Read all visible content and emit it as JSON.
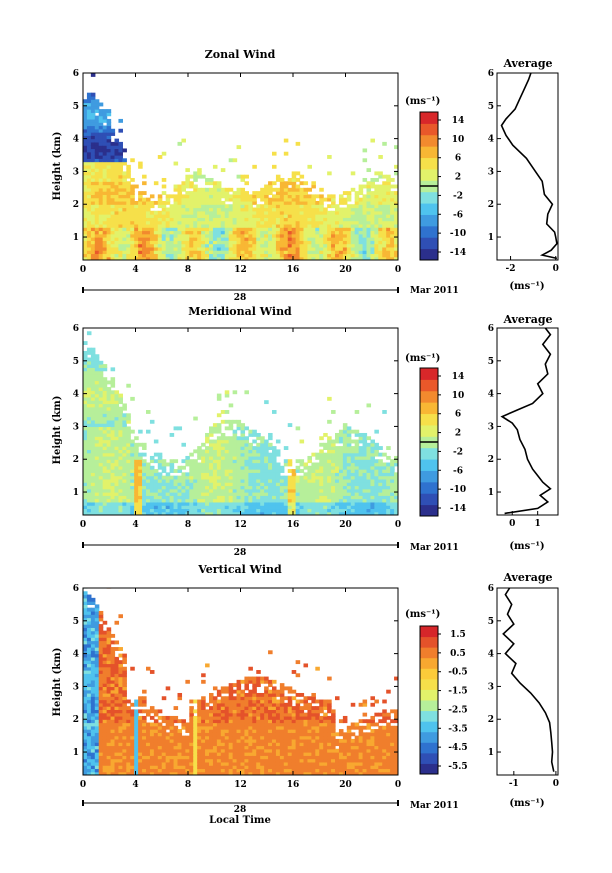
{
  "colors": {
    "zonal": [
      "#2b2f8c",
      "#2f4fb5",
      "#2f72cf",
      "#3f9be0",
      "#4fc3ee",
      "#7fe0e0",
      "#b6ef9a",
      "#e2f26a",
      "#f6e04a",
      "#f8b734",
      "#f28a2e",
      "#e9582a",
      "#d8272a"
    ],
    "vertical": [
      "#2b2f8c",
      "#2f4fb5",
      "#2f72cf",
      "#3f9be0",
      "#4fc3ee",
      "#7fe0e0",
      "#b6ef9a",
      "#e2f26a",
      "#f6e04a",
      "#fbcb3a",
      "#f8a830",
      "#f07e2c",
      "#e4522a",
      "#d6262a"
    ]
  },
  "chart_data": [
    {
      "type": "heatmap",
      "title": "Zonal Wind",
      "ylabel": "Height (km)",
      "xlabel": "",
      "x_ticks": [
        "0",
        "4",
        "8",
        "12",
        "16",
        "20",
        "0"
      ],
      "y_ticks": [
        "1",
        "2",
        "3",
        "4",
        "5",
        "6"
      ],
      "xlim": [
        0,
        24
      ],
      "ylim": [
        0.3,
        6
      ],
      "date_label": "28",
      "month_label": "Mar 2011",
      "colorbar": {
        "unit": "(ms⁻¹)",
        "ticks": [
          "14",
          "10",
          "6",
          "2",
          "-2",
          "-6",
          "-10",
          "-14"
        ],
        "range": [
          -16,
          16
        ],
        "zero_line": true
      },
      "profile": {
        "title": "Average",
        "xlabel": "(ms⁻¹)",
        "x_ticks": [
          "-2",
          "0"
        ],
        "xlim": [
          -2.6,
          0.1
        ],
        "y_ticks": [
          "1",
          "2",
          "3",
          "4",
          "5",
          "6"
        ],
        "ylim": [
          0.3,
          6
        ],
        "points": [
          [
            0.05,
            0.35
          ],
          [
            -0.6,
            0.45
          ],
          [
            -0.2,
            0.6
          ],
          [
            0.05,
            0.8
          ],
          [
            0.0,
            1.0
          ],
          [
            -0.05,
            1.15
          ],
          [
            -0.4,
            1.4
          ],
          [
            -0.35,
            1.7
          ],
          [
            -0.15,
            2.0
          ],
          [
            -0.5,
            2.3
          ],
          [
            -0.6,
            2.7
          ],
          [
            -0.9,
            3.0
          ],
          [
            -1.3,
            3.4
          ],
          [
            -1.9,
            3.8
          ],
          [
            -2.2,
            4.1
          ],
          [
            -2.4,
            4.4
          ],
          [
            -2.2,
            4.6
          ],
          [
            -1.8,
            4.9
          ],
          [
            -1.6,
            5.2
          ],
          [
            -1.4,
            5.5
          ],
          [
            -1.2,
            5.8
          ],
          [
            -1.1,
            6.0
          ]
        ]
      }
    },
    {
      "type": "heatmap",
      "title": "Meridional Wind",
      "ylabel": "Height (km)",
      "xlabel": "",
      "x_ticks": [
        "0",
        "4",
        "8",
        "12",
        "16",
        "20",
        "0"
      ],
      "y_ticks": [
        "1",
        "2",
        "3",
        "4",
        "5",
        "6"
      ],
      "xlim": [
        0,
        24
      ],
      "ylim": [
        0.3,
        6
      ],
      "date_label": "28",
      "month_label": "Mar 2011",
      "colorbar": {
        "unit": "(ms⁻¹)",
        "ticks": [
          "14",
          "10",
          "6",
          "2",
          "-2",
          "-6",
          "-10",
          "-14"
        ],
        "range": [
          -16,
          16
        ],
        "zero_line": true
      },
      "profile": {
        "title": "Average",
        "xlabel": "(ms⁻¹)",
        "x_ticks": [
          "0",
          "1"
        ],
        "xlim": [
          -0.6,
          1.8
        ],
        "y_ticks": [
          "1",
          "2",
          "3",
          "4",
          "5",
          "6"
        ],
        "ylim": [
          0.3,
          6
        ],
        "points": [
          [
            -0.3,
            0.35
          ],
          [
            1.0,
            0.5
          ],
          [
            1.4,
            0.7
          ],
          [
            1.1,
            0.9
          ],
          [
            1.5,
            1.1
          ],
          [
            1.2,
            1.3
          ],
          [
            1.0,
            1.5
          ],
          [
            0.8,
            1.7
          ],
          [
            0.6,
            2.0
          ],
          [
            0.5,
            2.3
          ],
          [
            0.3,
            2.6
          ],
          [
            0.2,
            2.9
          ],
          [
            0.0,
            3.1
          ],
          [
            -0.4,
            3.3
          ],
          [
            0.2,
            3.5
          ],
          [
            0.8,
            3.7
          ],
          [
            1.2,
            4.0
          ],
          [
            1.0,
            4.3
          ],
          [
            1.4,
            4.6
          ],
          [
            1.3,
            4.9
          ],
          [
            1.5,
            5.2
          ],
          [
            1.2,
            5.5
          ],
          [
            1.5,
            5.8
          ],
          [
            1.3,
            6.0
          ]
        ]
      }
    },
    {
      "type": "heatmap",
      "title": "Vertical Wind",
      "ylabel": "Height (km)",
      "xlabel": "Local Time",
      "x_ticks": [
        "0",
        "4",
        "8",
        "12",
        "16",
        "20",
        "0"
      ],
      "y_ticks": [
        "1",
        "2",
        "3",
        "4",
        "5",
        "6"
      ],
      "xlim": [
        0,
        24
      ],
      "ylim": [
        0.3,
        6
      ],
      "date_label": "28",
      "month_label": "Mar 2011",
      "colorbar": {
        "unit": "(ms⁻¹)",
        "ticks": [
          "1.5",
          "0.5",
          "-0.5",
          "-1.5",
          "-2.5",
          "-3.5",
          "-4.5",
          "-5.5"
        ],
        "range": [
          -6,
          2
        ],
        "zero_line": false
      },
      "profile": {
        "title": "Average",
        "xlabel": "(ms⁻¹)",
        "x_ticks": [
          "-1",
          "0"
        ],
        "xlim": [
          -1.4,
          0.05
        ],
        "y_ticks": [
          "1",
          "2",
          "3",
          "4",
          "5",
          "6"
        ],
        "ylim": [
          0.3,
          6
        ],
        "points": [
          [
            -0.05,
            0.4
          ],
          [
            -0.1,
            0.7
          ],
          [
            -0.08,
            1.0
          ],
          [
            -0.1,
            1.3
          ],
          [
            -0.12,
            1.6
          ],
          [
            -0.15,
            1.9
          ],
          [
            -0.25,
            2.2
          ],
          [
            -0.4,
            2.5
          ],
          [
            -0.6,
            2.8
          ],
          [
            -0.85,
            3.1
          ],
          [
            -1.05,
            3.4
          ],
          [
            -0.95,
            3.7
          ],
          [
            -1.2,
            4.0
          ],
          [
            -1.0,
            4.3
          ],
          [
            -1.25,
            4.6
          ],
          [
            -1.0,
            4.9
          ],
          [
            -1.15,
            5.2
          ],
          [
            -1.05,
            5.5
          ],
          [
            -1.2,
            5.8
          ],
          [
            -1.1,
            6.0
          ]
        ]
      }
    }
  ]
}
